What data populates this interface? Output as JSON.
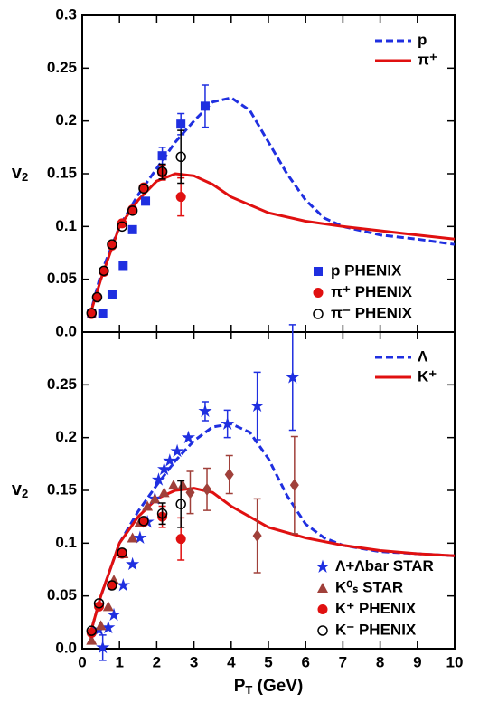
{
  "chart_data": [
    {
      "type": "line",
      "ylabel": [
        "v",
        "2"
      ],
      "xlim": [
        0,
        10
      ],
      "ylim": [
        0,
        0.3
      ],
      "yticks": [
        {
          "value": 0,
          "label": "0.0"
        },
        0.05,
        0.1,
        0.15,
        0.2,
        0.25,
        0.3
      ],
      "legend_lines": "upper right",
      "legend_markers": "lower right",
      "series": [
        {
          "name": "p",
          "kind": "line",
          "dash": true,
          "color": "#1f2fe0",
          "x": [
            0.2,
            0.5,
            1,
            1.5,
            2,
            2.5,
            3,
            3.5,
            4,
            4.5,
            5,
            5.5,
            6,
            6.5,
            7,
            8,
            9,
            10
          ],
          "values": [
            0.015,
            0.055,
            0.1,
            0.13,
            0.155,
            0.18,
            0.2,
            0.218,
            0.222,
            0.21,
            0.18,
            0.15,
            0.125,
            0.108,
            0.1,
            0.092,
            0.088,
            0.083
          ]
        },
        {
          "name": "π⁺",
          "kind": "line",
          "dash": false,
          "color": "#e01010",
          "x": [
            0.2,
            0.5,
            1,
            1.5,
            2,
            2.5,
            3,
            3.5,
            4,
            5,
            6,
            7,
            8,
            9,
            10
          ],
          "values": [
            0.015,
            0.05,
            0.1,
            0.125,
            0.143,
            0.15,
            0.148,
            0.14,
            0.128,
            0.113,
            0.105,
            0.1,
            0.096,
            0.092,
            0.088
          ]
        },
        {
          "name": "p PHENIX",
          "kind": "marker",
          "marker": "square",
          "color": "#1f2fe0",
          "x": [
            0.25,
            0.55,
            0.8,
            1.1,
            1.35,
            1.7,
            2.15,
            2.65,
            3.3
          ],
          "values": [
            0.018,
            0.018,
            0.036,
            0.063,
            0.097,
            0.124,
            0.167,
            0.197,
            0.214
          ],
          "errors": [
            null,
            null,
            null,
            null,
            null,
            null,
            0.008,
            0.01,
            0.02
          ]
        },
        {
          "name": "π⁺ PHENIX",
          "kind": "marker",
          "marker": "circle",
          "color": "#e01010",
          "x": [
            0.25,
            0.4,
            0.58,
            0.8,
            1.07,
            1.35,
            1.65,
            2.15,
            2.65
          ],
          "values": [
            0.017,
            0.033,
            0.057,
            0.082,
            0.103,
            0.116,
            0.137,
            0.151,
            0.128
          ],
          "errors": [
            null,
            null,
            null,
            null,
            null,
            null,
            null,
            0.007,
            0.018
          ]
        },
        {
          "name": "π⁻ PHENIX",
          "kind": "marker",
          "marker": "open-circle",
          "color": "#000000",
          "x": [
            0.25,
            0.4,
            0.58,
            0.8,
            1.07,
            1.35,
            1.65,
            2.15,
            2.65
          ],
          "values": [
            0.018,
            0.033,
            0.058,
            0.083,
            0.1,
            0.115,
            0.136,
            0.152,
            0.166
          ],
          "errors": [
            null,
            null,
            null,
            null,
            null,
            null,
            null,
            0.007,
            0.025
          ]
        }
      ]
    },
    {
      "type": "line",
      "ylabel": [
        "v",
        "2"
      ],
      "xlabel": [
        "P",
        "T",
        " (GeV)"
      ],
      "xlim": [
        0,
        10
      ],
      "ylim": [
        0,
        0.3
      ],
      "xticks": [
        0,
        1,
        2,
        3,
        4,
        5,
        6,
        7,
        8,
        9,
        10
      ],
      "yticks": [
        {
          "value": 0,
          "label": "0.0"
        },
        0.05,
        0.1,
        0.15,
        0.2,
        0.25
      ],
      "legend_lines": "upper right",
      "legend_markers": "lower right",
      "series": [
        {
          "name": "Λ",
          "kind": "line",
          "dash": true,
          "color": "#1f2fe0",
          "x": [
            0.2,
            0.5,
            1,
            1.5,
            2,
            2.5,
            3,
            3.5,
            4,
            4.5,
            5,
            5.5,
            6,
            6.5,
            7,
            8,
            9,
            10
          ],
          "values": [
            0.012,
            0.05,
            0.1,
            0.13,
            0.155,
            0.178,
            0.197,
            0.21,
            0.213,
            0.205,
            0.18,
            0.145,
            0.118,
            0.105,
            0.098,
            0.092,
            0.09,
            0.088
          ]
        },
        {
          "name": "K⁺",
          "kind": "line",
          "dash": false,
          "color": "#e01010",
          "x": [
            0.2,
            0.5,
            1,
            1.5,
            2,
            2.5,
            3,
            3.5,
            4,
            5,
            6,
            7,
            8,
            9,
            10
          ],
          "values": [
            0.012,
            0.05,
            0.1,
            0.125,
            0.142,
            0.15,
            0.152,
            0.148,
            0.135,
            0.115,
            0.105,
            0.098,
            0.093,
            0.09,
            0.088
          ]
        },
        {
          "name": "Λ+Λbar STAR",
          "kind": "marker",
          "marker": "star",
          "color": "#1f2fe0",
          "x": [
            0.45,
            0.55,
            0.7,
            0.85,
            1.1,
            1.35,
            1.55,
            1.75,
            1.95,
            2.05,
            2.2,
            2.35,
            2.55,
            2.85,
            3.3,
            3.9,
            4.7,
            5.65
          ],
          "values": [
            0.018,
            0.001,
            0.02,
            0.032,
            0.06,
            0.08,
            0.105,
            0.12,
            0.142,
            0.16,
            0.17,
            0.178,
            0.187,
            0.2,
            0.225,
            0.213,
            0.23,
            0.257
          ],
          "errors": [
            null,
            0.012,
            null,
            null,
            null,
            null,
            null,
            null,
            null,
            null,
            null,
            null,
            null,
            null,
            0.009,
            0.013,
            0.032,
            0.05
          ]
        },
        {
          "name": "K⁰ₛ STAR",
          "kind": "marker",
          "marker": "triangle",
          "color": "#a0403a",
          "x": [
            0.25,
            0.5,
            0.7,
            0.85,
            1.1,
            1.35,
            1.55,
            1.75,
            1.95,
            2.2,
            2.45,
            2.7,
            2.9,
            3.35,
            3.95,
            4.7,
            5.7
          ],
          "values": [
            0.008,
            0.022,
            0.04,
            0.065,
            0.09,
            0.105,
            0.12,
            0.135,
            0.142,
            0.148,
            0.155,
            0.155,
            0.148,
            0.151,
            0.165,
            0.107,
            0.155
          ],
          "errors": [
            null,
            null,
            null,
            null,
            null,
            null,
            null,
            null,
            null,
            null,
            null,
            null,
            0.02,
            0.02,
            0.018,
            0.035,
            0.046
          ],
          "markers": [
            "triangle",
            "triangle",
            "triangle",
            "triangle",
            "triangle",
            "triangle",
            "triangle",
            "triangle",
            "triangle",
            "triangle",
            "triangle",
            "triangle",
            "diamond",
            "diamond",
            "diamond",
            "diamond",
            "diamond"
          ]
        },
        {
          "name": "K⁺ PHENIX",
          "kind": "marker",
          "marker": "circle",
          "color": "#e01010",
          "x": [
            0.25,
            0.45,
            0.8,
            1.07,
            1.65,
            2.15,
            2.65
          ],
          "values": [
            0.015,
            0.04,
            0.06,
            0.09,
            0.12,
            0.125,
            0.104
          ],
          "errors": [
            null,
            null,
            null,
            null,
            null,
            0.01,
            0.02
          ]
        },
        {
          "name": "K⁻ PHENIX",
          "kind": "marker",
          "marker": "open-circle",
          "color": "#000000",
          "x": [
            0.25,
            0.45,
            0.8,
            1.07,
            1.65,
            2.15,
            2.65
          ],
          "values": [
            0.017,
            0.043,
            0.06,
            0.091,
            0.121,
            0.128,
            0.137
          ],
          "errors": [
            null,
            null,
            null,
            null,
            null,
            0.01,
            0.022
          ]
        }
      ]
    }
  ]
}
